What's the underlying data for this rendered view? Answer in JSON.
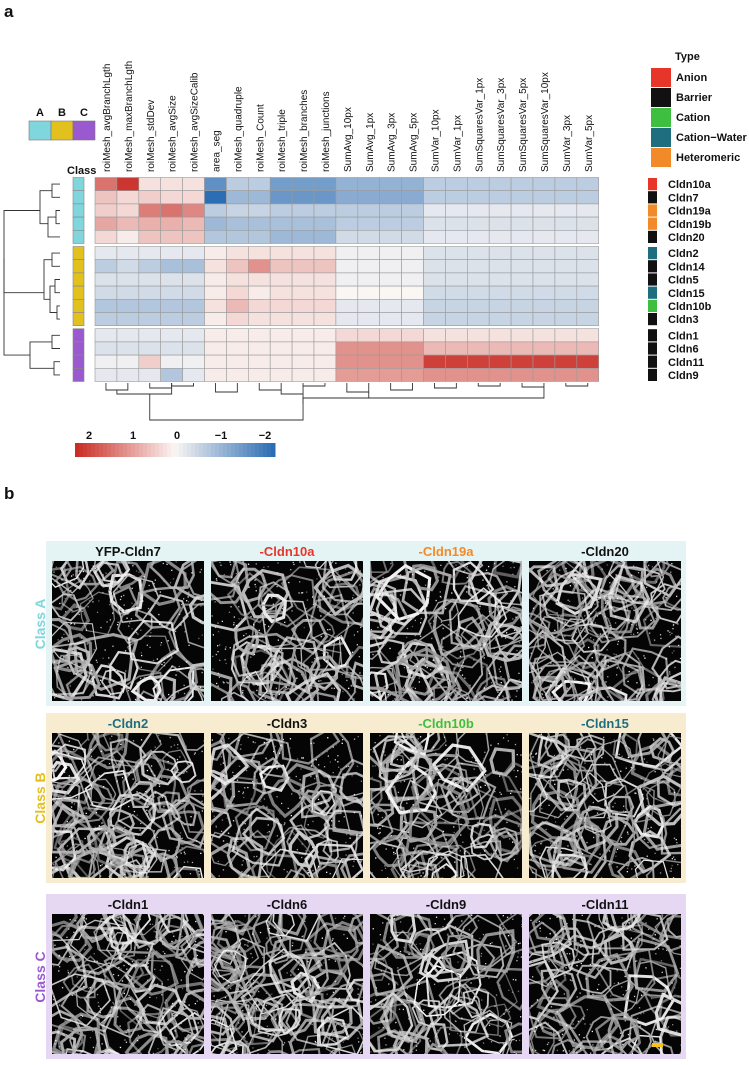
{
  "panel_a_label": "a",
  "panel_b_label": "b",
  "class_legend": {
    "title": "Class",
    "items": [
      {
        "label": "A",
        "color": "#7fd6dc"
      },
      {
        "label": "B",
        "color": "#e2c01e"
      },
      {
        "label": "C",
        "color": "#9b59d0"
      }
    ]
  },
  "type_legend": {
    "title": "Type",
    "items": [
      {
        "label": "Anion",
        "color": "#e8352a"
      },
      {
        "label": "Barrier",
        "color": "#111111"
      },
      {
        "label": "Cation",
        "color": "#3fbf3f"
      },
      {
        "label": "Cation−Water",
        "color": "#1f6e80"
      },
      {
        "label": "Heteromeric",
        "color": "#f28a2a"
      }
    ]
  },
  "colorbar": {
    "ticks": [
      "2",
      "1",
      "0",
      "−1",
      "−2"
    ]
  },
  "chart_data": {
    "type": "heatmap",
    "columns": [
      "roiMesh_avgBranchLgth",
      "roiMesh_maxBranchLgth",
      "roiMesh_stdDev",
      "roiMesh_avgSize",
      "roiMesh_avgSizeCalib",
      "area_seg",
      "roiMesh_quadruple",
      "roiMesh_Count",
      "roiMesh_triple",
      "roiMesh_branches",
      "roiMesh_junctions",
      "SumAvg_10px",
      "SumAvg_1px",
      "SumAvg_3px",
      "SumAvg_5px",
      "SumVar_10px",
      "SumVar_1px",
      "SumSquaresVar_1px",
      "SumSquaresVar_3px",
      "SumSquaresVar_5px",
      "SumSquaresVar_10px",
      "SumVar_3px",
      "SumVar_5px"
    ],
    "row_groups": [
      {
        "class": "A",
        "rows": [
          {
            "name": "Cldn10a",
            "type": "Anion",
            "values": [
              1.3,
              1.9,
              0.2,
              0.2,
              0.2,
              -1.5,
              -0.6,
              -0.6,
              -1.3,
              -1.3,
              -1.3,
              -1.0,
              -1.0,
              -1.0,
              -1.0,
              -0.6,
              -0.6,
              -0.6,
              -0.6,
              -0.6,
              -0.6,
              -0.6,
              -0.6
            ]
          },
          {
            "name": "Cldn7",
            "type": "Barrier",
            "values": [
              0.5,
              0.3,
              0.4,
              0.3,
              0.3,
              -2.0,
              -0.9,
              -0.9,
              -1.4,
              -1.4,
              -1.4,
              -1.1,
              -1.1,
              -1.1,
              -1.1,
              -0.6,
              -0.6,
              -0.6,
              -0.6,
              -0.6,
              -0.6,
              -0.6,
              -0.6
            ]
          },
          {
            "name": "Cldn19a",
            "type": "Heteromeric",
            "values": [
              0.4,
              0.3,
              1.2,
              1.3,
              1.1,
              -0.6,
              -0.5,
              -0.5,
              -0.6,
              -0.6,
              -0.6,
              -0.6,
              -0.6,
              -0.6,
              -0.6,
              -0.2,
              -0.2,
              -0.2,
              -0.2,
              -0.2,
              -0.2,
              -0.2,
              -0.2
            ]
          },
          {
            "name": "Cldn19b",
            "type": "Heteromeric",
            "values": [
              0.8,
              0.6,
              0.7,
              0.7,
              0.6,
              -0.9,
              -0.8,
              -0.8,
              -0.8,
              -0.8,
              -0.8,
              -0.6,
              -0.6,
              -0.6,
              -0.6,
              -0.3,
              -0.3,
              -0.3,
              -0.3,
              -0.3,
              -0.3,
              -0.3,
              -0.3
            ]
          },
          {
            "name": "Cldn20",
            "type": "Barrier",
            "values": [
              0.3,
              0.1,
              0.5,
              0.5,
              0.5,
              -0.7,
              -0.7,
              -0.7,
              -0.9,
              -0.9,
              -0.9,
              -0.4,
              -0.4,
              -0.4,
              -0.4,
              -0.2,
              -0.2,
              -0.2,
              -0.2,
              -0.2,
              -0.2,
              -0.2,
              -0.2
            ]
          }
        ]
      },
      {
        "class": "B",
        "rows": [
          {
            "name": "Cldn2",
            "type": "Cation−Water",
            "values": [
              -0.2,
              -0.2,
              -0.2,
              -0.2,
              -0.2,
              0.1,
              0.2,
              0.2,
              0.2,
              0.2,
              0.2,
              -0.1,
              -0.1,
              -0.1,
              -0.1,
              -0.3,
              -0.3,
              -0.3,
              -0.3,
              -0.3,
              -0.3,
              -0.3,
              -0.3
            ]
          },
          {
            "name": "Cldn14",
            "type": "Barrier",
            "values": [
              -0.6,
              -0.4,
              -0.6,
              -0.8,
              -0.8,
              0.2,
              0.5,
              1.0,
              0.5,
              0.5,
              0.5,
              -0.1,
              -0.1,
              -0.1,
              -0.1,
              -0.3,
              -0.3,
              -0.3,
              -0.3,
              -0.3,
              -0.3,
              -0.3,
              -0.3
            ]
          },
          {
            "name": "Cldn5",
            "type": "Barrier",
            "values": [
              -0.3,
              -0.3,
              -0.3,
              -0.3,
              -0.3,
              0.1,
              0.2,
              0.2,
              0.2,
              0.2,
              0.2,
              -0.1,
              -0.1,
              -0.1,
              -0.1,
              -0.3,
              -0.3,
              -0.3,
              -0.3,
              -0.3,
              -0.3,
              -0.3,
              -0.3
            ]
          },
          {
            "name": "Cldn15",
            "type": "Cation−Water",
            "values": [
              -0.4,
              -0.4,
              -0.4,
              -0.4,
              -0.4,
              0.1,
              0.3,
              0.1,
              0.2,
              0.2,
              0.2,
              0.0,
              0.0,
              0.0,
              0.0,
              -0.4,
              -0.4,
              -0.4,
              -0.4,
              -0.4,
              -0.4,
              -0.4,
              -0.4
            ]
          },
          {
            "name": "Cldn10b",
            "type": "Cation",
            "values": [
              -0.7,
              -0.7,
              -0.7,
              -0.7,
              -0.7,
              0.2,
              0.6,
              0.3,
              0.3,
              0.3,
              0.3,
              -0.2,
              -0.2,
              -0.2,
              -0.2,
              -0.5,
              -0.5,
              -0.5,
              -0.5,
              -0.5,
              -0.5,
              -0.5,
              -0.5
            ]
          },
          {
            "name": "Cldn3",
            "type": "Barrier",
            "values": [
              -0.6,
              -0.6,
              -0.6,
              -0.6,
              -0.6,
              0.1,
              0.3,
              0.2,
              0.2,
              0.2,
              0.2,
              -0.2,
              -0.2,
              -0.2,
              -0.2,
              -0.5,
              -0.5,
              -0.5,
              -0.5,
              -0.5,
              -0.5,
              -0.5,
              -0.5
            ]
          }
        ]
      },
      {
        "class": "C",
        "rows": [
          {
            "name": "Cldn1",
            "type": "Barrier",
            "values": [
              -0.2,
              -0.2,
              -0.2,
              -0.2,
              -0.2,
              0.1,
              0.1,
              0.1,
              0.1,
              0.1,
              0.1,
              0.3,
              0.3,
              0.3,
              0.3,
              0.2,
              0.2,
              0.2,
              0.2,
              0.2,
              0.2,
              0.2,
              0.2
            ]
          },
          {
            "name": "Cldn6",
            "type": "Barrier",
            "values": [
              -0.3,
              -0.3,
              -0.3,
              -0.3,
              -0.3,
              0.1,
              0.1,
              0.1,
              0.1,
              0.1,
              0.1,
              1.0,
              1.0,
              1.0,
              1.0,
              0.6,
              0.6,
              0.6,
              0.6,
              0.6,
              0.6,
              0.6,
              0.6
            ]
          },
          {
            "name": "Cldn11",
            "type": "Barrier",
            "values": [
              -0.1,
              -0.1,
              0.4,
              -0.1,
              -0.1,
              0.1,
              0.1,
              0.1,
              0.1,
              0.1,
              0.1,
              1.0,
              1.0,
              1.0,
              1.0,
              1.8,
              1.8,
              1.8,
              1.8,
              1.8,
              1.8,
              1.8,
              1.8
            ]
          },
          {
            "name": "Cldn9",
            "type": "Barrier",
            "values": [
              -0.2,
              -0.2,
              -0.2,
              -0.7,
              -0.2,
              0.1,
              0.1,
              0.1,
              0.1,
              0.1,
              0.1,
              0.9,
              0.9,
              0.9,
              0.9,
              1.0,
              1.0,
              1.0,
              1.0,
              1.0,
              1.0,
              1.0,
              1.0
            ]
          }
        ]
      }
    ],
    "scale_range": [
      -2,
      2
    ]
  },
  "micrograph_panels": [
    {
      "class_label": "Class A",
      "class_color": "#7fd6dc",
      "bg": "#e4f4f5",
      "tiles": [
        {
          "title": "YFP-Cldn7",
          "title_color": "#111111"
        },
        {
          "title": "-Cldn10a",
          "title_color": "#e8352a"
        },
        {
          "title": "-Cldn19a",
          "title_color": "#f28a2a"
        },
        {
          "title": "-Cldn20",
          "title_color": "#111111"
        }
      ]
    },
    {
      "class_label": "Class B",
      "class_color": "#e2c01e",
      "bg": "#f8ecd0",
      "tiles": [
        {
          "title": "-Cldn2",
          "title_color": "#1f6e80"
        },
        {
          "title": "-Cldn3",
          "title_color": "#111111"
        },
        {
          "title": "-Cldn10b",
          "title_color": "#3fbf3f"
        },
        {
          "title": "-Cldn15",
          "title_color": "#1f6e80"
        }
      ]
    },
    {
      "class_label": "Class C",
      "class_color": "#9b59d0",
      "bg": "#e6d8f2",
      "tiles": [
        {
          "title": "-Cldn1",
          "title_color": "#111111"
        },
        {
          "title": "-Cldn6",
          "title_color": "#111111"
        },
        {
          "title": "-Cldn9",
          "title_color": "#111111"
        },
        {
          "title": "-Cldn11",
          "title_color": "#111111"
        }
      ]
    }
  ]
}
